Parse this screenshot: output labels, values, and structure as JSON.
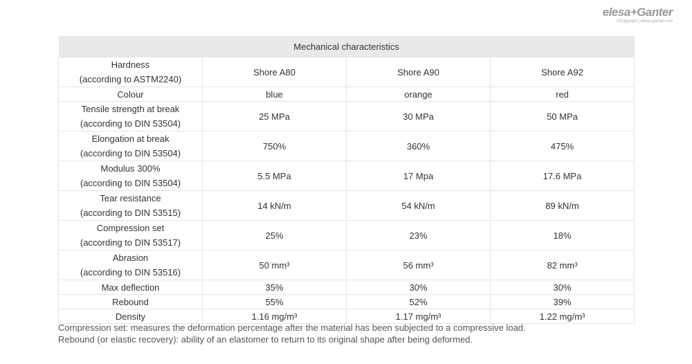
{
  "header": {
    "logo": "elesa+Ganter",
    "copyright": "©Copyright | elesa-ganter.com"
  },
  "table": {
    "title": "Mechanical characteristics",
    "rows": [
      {
        "label": [
          "Hardness",
          "(according to ASTM2240)"
        ],
        "values": [
          "Shore A80",
          "Shore A90",
          "Shore A92"
        ]
      },
      {
        "label": [
          "Colour"
        ],
        "values": [
          "blue",
          "orange",
          "red"
        ]
      },
      {
        "label": [
          "Tensile strength at break",
          "(according to DIN 53504)"
        ],
        "values": [
          "25 MPa",
          "30 MPa",
          "50 MPa"
        ]
      },
      {
        "label": [
          "Elongation at break",
          "(according to DIN 53504)"
        ],
        "values": [
          "750%",
          "360%",
          "475%"
        ]
      },
      {
        "label": [
          "Modulus 300%",
          "(according to DIN 53504)"
        ],
        "values": [
          "5.5 MPa",
          "17 Mpa",
          "17.6 MPa"
        ]
      },
      {
        "label": [
          "Tear resistance",
          "(according to DIN 53515)"
        ],
        "values": [
          "14 kN/m",
          "54 kN/m",
          "89 kN/m"
        ]
      },
      {
        "label": [
          "Compression set",
          "(according to DIN 53517)"
        ],
        "values": [
          "25%",
          "23%",
          "18%"
        ]
      },
      {
        "label": [
          "Abrasion",
          "(according to DIN 53516)"
        ],
        "values": [
          "50 mm³",
          "56 mm³",
          "82 mm³"
        ]
      },
      {
        "label": [
          "Max deflection"
        ],
        "values": [
          "35%",
          "30%",
          "30%"
        ]
      },
      {
        "label": [
          "Rebound"
        ],
        "values": [
          "55%",
          "52%",
          "39%"
        ]
      },
      {
        "label": [
          "Density"
        ],
        "values": [
          "1.16 mg/m³",
          "1.17 mg/m³",
          "1.22 mg/m³"
        ]
      }
    ]
  },
  "notes": [
    "Compression set: measures the deformation percentage after the material has been subjected to a compressive load.",
    "Rebound (or elastic recovery): ability of an elastomer to return to its original shape after being deformed."
  ]
}
